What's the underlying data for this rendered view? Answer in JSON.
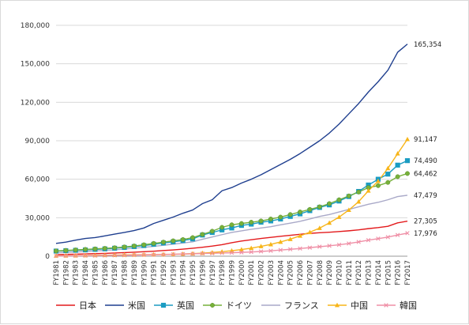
{
  "chart_data": {
    "type": "line",
    "title": "",
    "xlabel": "",
    "ylabel": "",
    "ylim": [
      0,
      180000
    ],
    "yticks": [
      0,
      30000,
      60000,
      90000,
      120000,
      150000,
      180000
    ],
    "ytick_labels": [
      "0",
      "30,000",
      "60,000",
      "90,000",
      "120,000",
      "150,000",
      "180,000"
    ],
    "grid": true,
    "legend_position": "bottom",
    "categories": [
      "FY1981",
      "FY1982",
      "FY1983",
      "FY1984",
      "FY1985",
      "FY1986",
      "FY1987",
      "FY1988",
      "FY1989",
      "FY1990",
      "FY1991",
      "FY1992",
      "FY1993",
      "FY1994",
      "FY1995",
      "FY1996",
      "FY1997",
      "FY1998",
      "FY1999",
      "FY2000",
      "FY2001",
      "FY2002",
      "FY2003",
      "FY2004",
      "FY2005",
      "FY2006",
      "FY2007",
      "FY2008",
      "FY2009",
      "FY2010",
      "FY2011",
      "FY2012",
      "FY2013",
      "FY2014",
      "FY2015",
      "FY2016",
      "FY2017"
    ],
    "series": [
      {
        "name": "日本",
        "color": "#e31a1c",
        "marker": "none",
        "end_label": "27,305",
        "values": [
          1200,
          1400,
          1600,
          1800,
          2000,
          2200,
          2500,
          2800,
          3100,
          3500,
          3900,
          4400,
          4900,
          5500,
          6200,
          7000,
          7900,
          9000,
          10500,
          11800,
          12800,
          13800,
          14700,
          15500,
          16300,
          17100,
          17800,
          18300,
          18700,
          19200,
          19800,
          20500,
          21500,
          22300,
          23300,
          26000,
          27305
        ]
      },
      {
        "name": "米国",
        "color": "#1f3f8f",
        "marker": "none",
        "end_label": "165,354",
        "values": [
          10000,
          11000,
          12500,
          13800,
          14500,
          15800,
          17200,
          18500,
          20000,
          22000,
          25500,
          28000,
          30500,
          33500,
          36000,
          41000,
          44000,
          51000,
          53500,
          57000,
          60000,
          63500,
          67500,
          71500,
          75500,
          80000,
          85000,
          90000,
          96000,
          103000,
          111000,
          119000,
          128000,
          136000,
          145000,
          159000,
          165354
        ]
      },
      {
        "name": "英国",
        "color": "#1b9cc2",
        "marker": "square",
        "end_label": "74,490",
        "values": [
          4000,
          4300,
          4600,
          4900,
          5300,
          5700,
          6200,
          6800,
          7500,
          8300,
          9300,
          10300,
          11200,
          12200,
          13500,
          16500,
          18500,
          20500,
          22000,
          24000,
          25000,
          26500,
          27500,
          29000,
          31000,
          33000,
          35500,
          38000,
          40000,
          43000,
          46500,
          50500,
          55500,
          60000,
          64000,
          71000,
          74490
        ]
      },
      {
        "name": "ドイツ",
        "color": "#77b13a",
        "marker": "circle",
        "end_label": "64,462",
        "values": [
          4100,
          4500,
          4900,
          5300,
          5700,
          6100,
          6600,
          7200,
          8000,
          8900,
          10000,
          11000,
          12000,
          13000,
          14500,
          17000,
          19500,
          22500,
          24500,
          25500,
          26500,
          27500,
          29000,
          30500,
          32500,
          34500,
          36500,
          38500,
          41000,
          44000,
          47000,
          50000,
          53500,
          55000,
          57500,
          62000,
          64462
        ]
      },
      {
        "name": "フランス",
        "color": "#a9a9c8",
        "marker": "none",
        "end_label": "47,479",
        "values": [
          2700,
          3000,
          3300,
          3700,
          4100,
          4500,
          5000,
          5600,
          6200,
          6900,
          7700,
          8500,
          9400,
          10300,
          11200,
          13200,
          15000,
          16800,
          18500,
          19800,
          21000,
          22000,
          23000,
          24500,
          25800,
          27200,
          29000,
          31000,
          32500,
          34500,
          36500,
          38500,
          40500,
          42000,
          44000,
          46500,
          47479
        ]
      },
      {
        "name": "中国",
        "color": "#f7b519",
        "marker": "triangle",
        "end_label": "91,147",
        "values": [
          300,
          400,
          500,
          600,
          700,
          800,
          900,
          1000,
          1100,
          1200,
          1300,
          1400,
          1500,
          1700,
          2000,
          2400,
          2900,
          3500,
          4300,
          5200,
          6300,
          7700,
          9200,
          11100,
          13300,
          15900,
          18700,
          21900,
          26000,
          30500,
          36000,
          42500,
          51000,
          58500,
          68500,
          80000,
          91147
        ]
      },
      {
        "name": "韓国",
        "color": "#ef8fa6",
        "marker": "x",
        "end_label": "17,976",
        "values": [
          200,
          300,
          350,
          400,
          450,
          550,
          650,
          750,
          850,
          1000,
          1150,
          1300,
          1500,
          1700,
          1900,
          2100,
          2300,
          2500,
          2700,
          3000,
          3300,
          3700,
          4200,
          4800,
          5400,
          6000,
          6700,
          7400,
          8100,
          8900,
          9900,
          11100,
          12500,
          13700,
          14900,
          16500,
          17976
        ]
      }
    ]
  }
}
